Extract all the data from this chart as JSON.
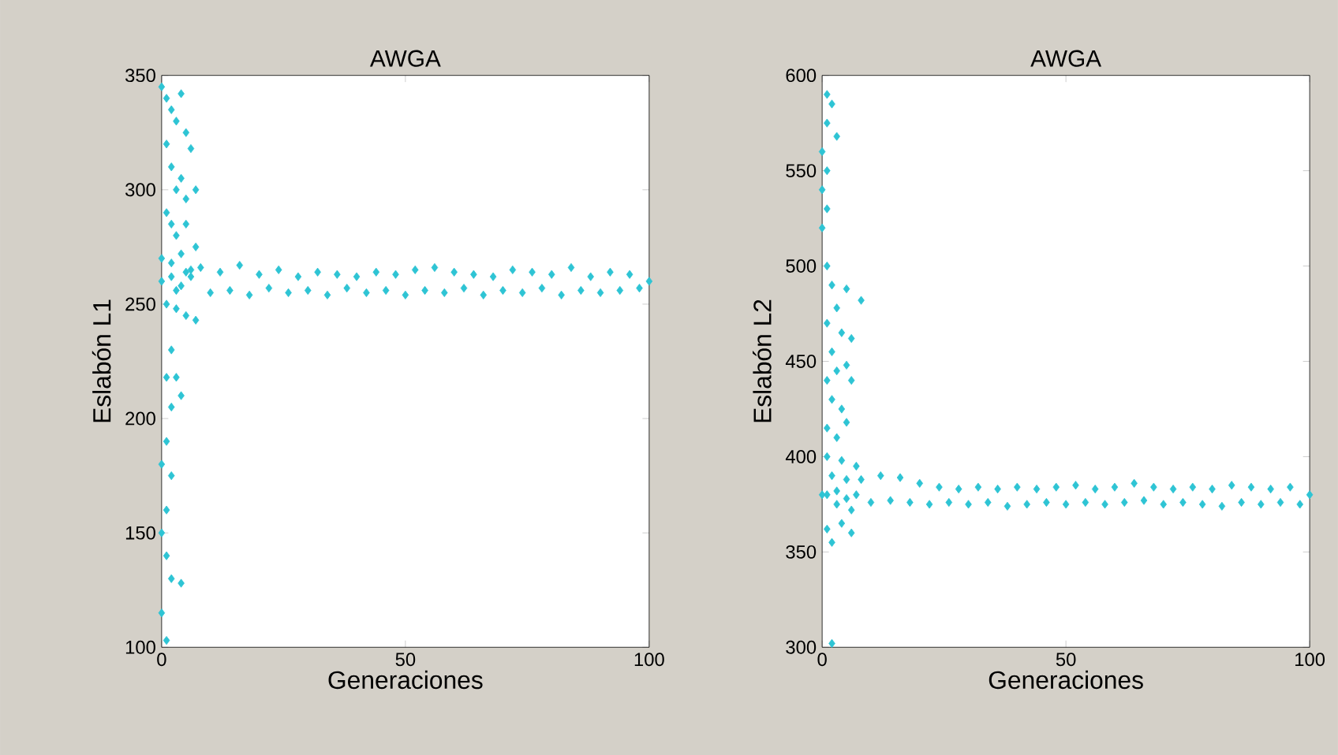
{
  "chart_data": [
    {
      "type": "scatter",
      "title": "AWGA",
      "xlabel": "Generaciones",
      "ylabel": "Eslabón L1",
      "marker": "diamond",
      "xlim": [
        0,
        100
      ],
      "ylim": [
        100,
        350
      ],
      "xticks": [
        0,
        50,
        100
      ],
      "yticks": [
        100,
        150,
        200,
        250,
        300,
        350
      ],
      "series": [
        {
          "color": "#2ec4d4",
          "x": [
            0,
            1,
            2,
            3,
            4,
            5,
            6,
            1,
            2,
            3,
            4,
            5,
            7,
            1,
            2,
            3,
            5,
            7,
            0,
            2,
            4,
            6,
            1,
            3,
            5,
            7,
            2,
            1,
            3,
            4,
            2,
            1,
            0,
            2,
            1,
            0,
            1,
            2,
            4,
            0,
            1,
            0,
            2,
            4,
            6,
            3,
            5,
            8,
            10,
            12,
            14,
            16,
            18,
            20,
            22,
            24,
            26,
            28,
            30,
            32,
            34,
            36,
            38,
            40,
            42,
            44,
            46,
            48,
            50,
            52,
            54,
            56,
            58,
            60,
            62,
            64,
            66,
            68,
            70,
            72,
            74,
            76,
            78,
            80,
            82,
            84,
            86,
            88,
            90,
            92,
            94,
            96,
            98,
            100
          ],
          "values": [
            345,
            340,
            335,
            330,
            342,
            325,
            318,
            320,
            310,
            300,
            305,
            296,
            300,
            290,
            285,
            280,
            285,
            275,
            270,
            268,
            272,
            265,
            250,
            248,
            245,
            243,
            230,
            218,
            218,
            210,
            205,
            190,
            180,
            175,
            160,
            150,
            140,
            130,
            128,
            115,
            103,
            260,
            262,
            258,
            262,
            256,
            264,
            266,
            255,
            264,
            256,
            267,
            254,
            263,
            257,
            265,
            255,
            262,
            256,
            264,
            254,
            263,
            257,
            262,
            255,
            264,
            256,
            263,
            254,
            265,
            256,
            266,
            255,
            264,
            257,
            263,
            254,
            262,
            256,
            265,
            255,
            264,
            257,
            263,
            254,
            266,
            256,
            262,
            255,
            264,
            256,
            263,
            257,
            260
          ]
        }
      ]
    },
    {
      "type": "scatter",
      "title": "AWGA",
      "xlabel": "Generaciones",
      "ylabel": "Eslabón L2",
      "marker": "diamond",
      "xlim": [
        0,
        100
      ],
      "ylim": [
        300,
        600
      ],
      "xticks": [
        0,
        50,
        100
      ],
      "yticks": [
        300,
        350,
        400,
        450,
        500,
        550,
        600
      ],
      "series": [
        {
          "color": "#2ec4d4",
          "x": [
            1,
            2,
            1,
            0,
            3,
            1,
            0,
            1,
            0,
            1,
            2,
            5,
            8,
            3,
            1,
            4,
            6,
            2,
            5,
            1,
            3,
            6,
            2,
            4,
            1,
            5,
            3,
            1,
            4,
            7,
            2,
            5,
            1,
            3,
            6,
            1,
            4,
            2,
            6,
            2,
            0,
            3,
            5,
            7,
            8,
            10,
            12,
            14,
            16,
            18,
            20,
            22,
            24,
            26,
            28,
            30,
            32,
            34,
            36,
            38,
            40,
            42,
            44,
            46,
            48,
            50,
            52,
            54,
            56,
            58,
            60,
            62,
            64,
            66,
            68,
            70,
            72,
            74,
            76,
            78,
            80,
            82,
            84,
            86,
            88,
            90,
            92,
            94,
            96,
            98,
            100
          ],
          "values": [
            590,
            585,
            575,
            560,
            568,
            550,
            540,
            530,
            520,
            500,
            490,
            488,
            482,
            478,
            470,
            465,
            462,
            455,
            448,
            440,
            445,
            440,
            430,
            425,
            415,
            418,
            410,
            400,
            398,
            395,
            390,
            388,
            380,
            375,
            372,
            362,
            365,
            355,
            360,
            302,
            380,
            382,
            378,
            380,
            388,
            376,
            390,
            377,
            389,
            376,
            386,
            375,
            384,
            376,
            383,
            375,
            384,
            376,
            383,
            374,
            384,
            375,
            383,
            376,
            384,
            375,
            385,
            376,
            383,
            375,
            384,
            376,
            386,
            377,
            384,
            375,
            383,
            376,
            384,
            375,
            383,
            374,
            385,
            376,
            384,
            375,
            383,
            376,
            384,
            375,
            380
          ]
        }
      ]
    }
  ]
}
